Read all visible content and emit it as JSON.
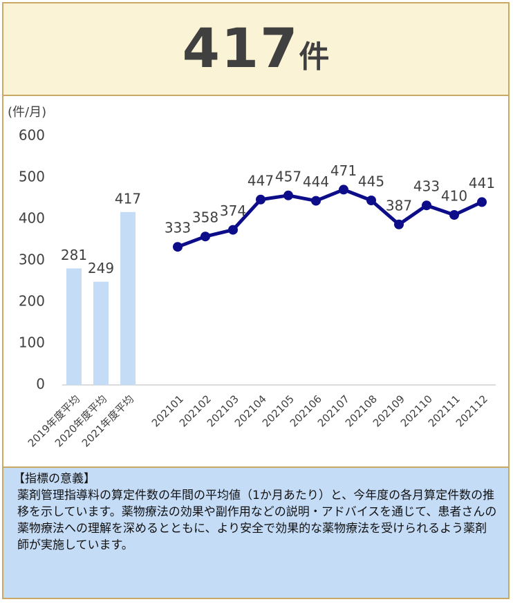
{
  "header": {
    "number": "417",
    "unit": "件"
  },
  "chart_data": {
    "type": "bar-line",
    "y_label": "(件/月)",
    "categories": [
      "2019年度平均",
      "2020年度平均",
      "2021年度平均",
      "202101",
      "202102",
      "202103",
      "202104",
      "202105",
      "202106",
      "202107",
      "202108",
      "202109",
      "202110",
      "202111",
      "202112"
    ],
    "series": [
      {
        "type": "bar",
        "color": "#c5dcf7",
        "values": [
          281,
          249,
          417,
          null,
          null,
          null,
          null,
          null,
          null,
          null,
          null,
          null,
          null,
          null,
          null
        ]
      },
      {
        "type": "line",
        "color": "#0d0d8a",
        "values": [
          null,
          null,
          null,
          333,
          358,
          374,
          447,
          457,
          444,
          471,
          445,
          387,
          433,
          410,
          441
        ]
      }
    ],
    "ylim": [
      0,
      600
    ],
    "yticks": [
      0,
      100,
      200,
      300,
      400,
      500,
      600
    ],
    "grid": false
  },
  "description": {
    "title": "【指標の意義】",
    "body": "薬剤管理指導料の算定件数の年間の平均値（1か月あたり）と、今年度の各月算定件数の推移を示しています。薬物療法の効果や副作用などの説明・アドバイスを通じて、患者さんの薬物療法への理解を深めるとともに、より安全で効果的な薬物療法を受けられるよう薬剤師が実施しています。"
  }
}
